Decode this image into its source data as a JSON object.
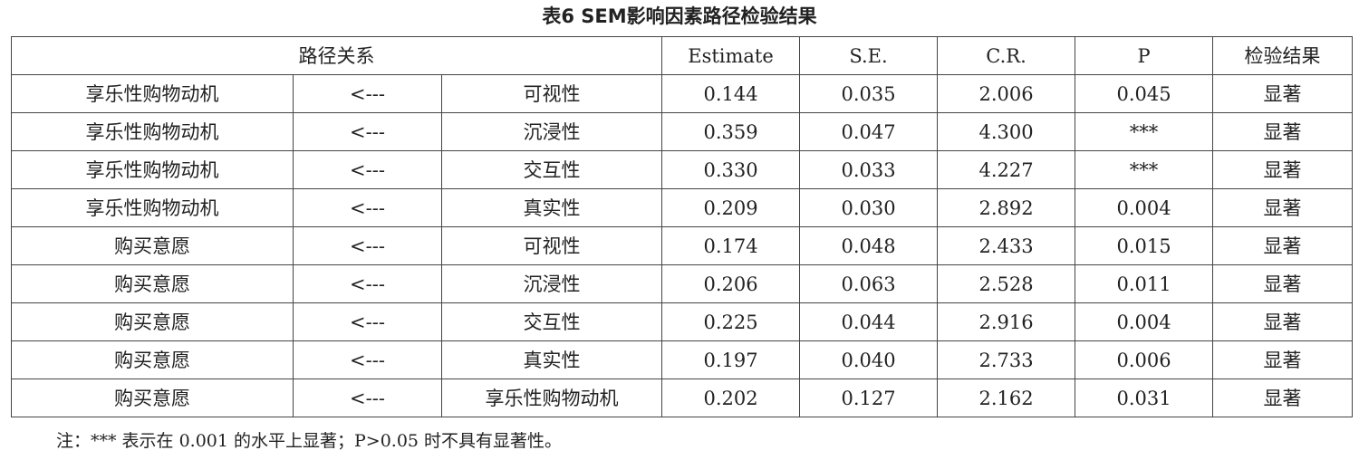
{
  "title": "表6 SEM影响因素路径检验结果",
  "headers": {
    "path": "路径关系",
    "estimate": "Estimate",
    "se": "S.E.",
    "cr": "C.R.",
    "p": "P",
    "result": "检验结果"
  },
  "rows": [
    {
      "dv": "享乐性购物动机",
      "arrow": "<---",
      "iv": "可视性",
      "estimate": "0.144",
      "se": "0.035",
      "cr": "2.006",
      "p": "0.045",
      "result": "显著"
    },
    {
      "dv": "享乐性购物动机",
      "arrow": "<---",
      "iv": "沉浸性",
      "estimate": "0.359",
      "se": "0.047",
      "cr": "4.300",
      "p": "***",
      "result": "显著"
    },
    {
      "dv": "享乐性购物动机",
      "arrow": "<---",
      "iv": "交互性",
      "estimate": "0.330",
      "se": "0.033",
      "cr": "4.227",
      "p": "***",
      "result": "显著"
    },
    {
      "dv": "享乐性购物动机",
      "arrow": "<---",
      "iv": "真实性",
      "estimate": "0.209",
      "se": "0.030",
      "cr": "2.892",
      "p": "0.004",
      "result": "显著"
    },
    {
      "dv": "购买意愿",
      "arrow": "<---",
      "iv": "可视性",
      "estimate": "0.174",
      "se": "0.048",
      "cr": "2.433",
      "p": "0.015",
      "result": "显著"
    },
    {
      "dv": "购买意愿",
      "arrow": "<---",
      "iv": "沉浸性",
      "estimate": "0.206",
      "se": "0.063",
      "cr": "2.528",
      "p": "0.011",
      "result": "显著"
    },
    {
      "dv": "购买意愿",
      "arrow": "<---",
      "iv": "交互性",
      "estimate": "0.225",
      "se": "0.044",
      "cr": "2.916",
      "p": "0.004",
      "result": "显著"
    },
    {
      "dv": "购买意愿",
      "arrow": "<---",
      "iv": "真实性",
      "estimate": "0.197",
      "se": "0.040",
      "cr": "2.733",
      "p": "0.006",
      "result": "显著"
    },
    {
      "dv": "购买意愿",
      "arrow": "<---",
      "iv": "享乐性购物动机",
      "estimate": "0.202",
      "se": "0.127",
      "cr": "2.162",
      "p": "0.031",
      "result": "显著"
    }
  ],
  "note": "注：*** 表示在 0.001 的水平上显著；P>0.05 时不具有显著性。"
}
